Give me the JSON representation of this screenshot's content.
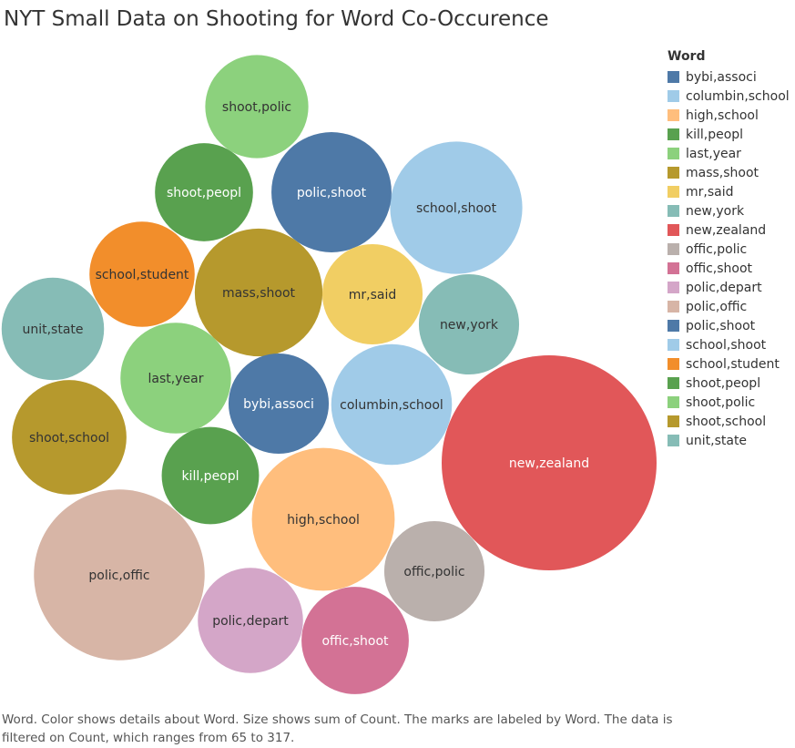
{
  "title": "NYT Small Data on Shooting for Word Co-Occurence",
  "legend": {
    "title": "Word",
    "items": [
      {
        "label": "bybi,associ",
        "color": "#4e79a7"
      },
      {
        "label": "columbin,school",
        "color": "#a0cbe8"
      },
      {
        "label": "high,school",
        "color": "#ffbe7d"
      },
      {
        "label": "kill,peopl",
        "color": "#59a14f"
      },
      {
        "label": "last,year",
        "color": "#8cd17d"
      },
      {
        "label": "mass,shoot",
        "color": "#b6992d"
      },
      {
        "label": "mr,said",
        "color": "#f1ce63"
      },
      {
        "label": "new,york",
        "color": "#86bcb6"
      },
      {
        "label": "new,zealand",
        "color": "#e15759"
      },
      {
        "label": "offic,polic",
        "color": "#bab0ac"
      },
      {
        "label": "offic,shoot",
        "color": "#d37295"
      },
      {
        "label": "polic,depart",
        "color": "#d4a6c8"
      },
      {
        "label": "polic,offic",
        "color": "#d7b5a6"
      },
      {
        "label": "polic,shoot",
        "color": "#4e79a7"
      },
      {
        "label": "school,shoot",
        "color": "#a0cbe8"
      },
      {
        "label": "school,student",
        "color": "#f28e2b"
      },
      {
        "label": "shoot,peopl",
        "color": "#59a14f"
      },
      {
        "label": "shoot,polic",
        "color": "#8cd17d"
      },
      {
        "label": "shoot,school",
        "color": "#b6992d"
      },
      {
        "label": "unit,state",
        "color": "#86bcb6"
      }
    ]
  },
  "caption": "Word.  Color shows details about Word.  Size shows sum of Count.  The marks are labeled by Word. The data is filtered on Count, which ranges from 65 to 317.",
  "chart_data": {
    "type": "packed-bubble",
    "size_measure": "sum of Count",
    "count_range": [
      65,
      317
    ],
    "bubbles": [
      {
        "word": "new,zealand",
        "count": 317,
        "color": "#e15759",
        "label_color": "#ffffff"
      },
      {
        "word": "polic,offic",
        "count": 200,
        "color": "#d7b5a6",
        "label_color": "#333333"
      },
      {
        "word": "high,school",
        "count": 140,
        "color": "#ffbe7d",
        "label_color": "#333333"
      },
      {
        "word": "school,shoot",
        "count": 120,
        "color": "#a0cbe8",
        "label_color": "#333333"
      },
      {
        "word": "mass,shoot",
        "count": 112,
        "color": "#b6992d",
        "label_color": "#333333"
      },
      {
        "word": "columbin,school",
        "count": 100,
        "color": "#a0cbe8",
        "label_color": "#333333"
      },
      {
        "word": "polic,shoot",
        "count": 99,
        "color": "#4e79a7",
        "label_color": "#ffffff"
      },
      {
        "word": "shoot,school",
        "count": 90,
        "color": "#b6992d",
        "label_color": "#333333"
      },
      {
        "word": "last,year",
        "count": 84,
        "color": "#8cd17d",
        "label_color": "#333333"
      },
      {
        "word": "offic,shoot",
        "count": 79,
        "color": "#d37295",
        "label_color": "#ffffff"
      },
      {
        "word": "polic,depart",
        "count": 76,
        "color": "#d4a6c8",
        "label_color": "#333333"
      },
      {
        "word": "school,student",
        "count": 76,
        "color": "#f28e2b",
        "label_color": "#333333"
      },
      {
        "word": "shoot,polic",
        "count": 73,
        "color": "#8cd17d",
        "label_color": "#333333"
      },
      {
        "word": "unit,state",
        "count": 72,
        "color": "#86bcb6",
        "label_color": "#333333"
      },
      {
        "word": "mr,said",
        "count": 69,
        "color": "#f1ce63",
        "label_color": "#333333"
      },
      {
        "word": "new,york",
        "count": 69,
        "color": "#86bcb6",
        "label_color": "#333333"
      },
      {
        "word": "offic,polic",
        "count": 69,
        "color": "#bab0ac",
        "label_color": "#333333"
      },
      {
        "word": "bybi,associ",
        "count": 69,
        "color": "#4e79a7",
        "label_color": "#ffffff"
      },
      {
        "word": "shoot,peopl",
        "count": 66,
        "color": "#59a14f",
        "label_color": "#ffffff"
      },
      {
        "word": "kill,peopl",
        "count": 65,
        "color": "#59a14f",
        "label_color": "#ffffff"
      }
    ]
  }
}
